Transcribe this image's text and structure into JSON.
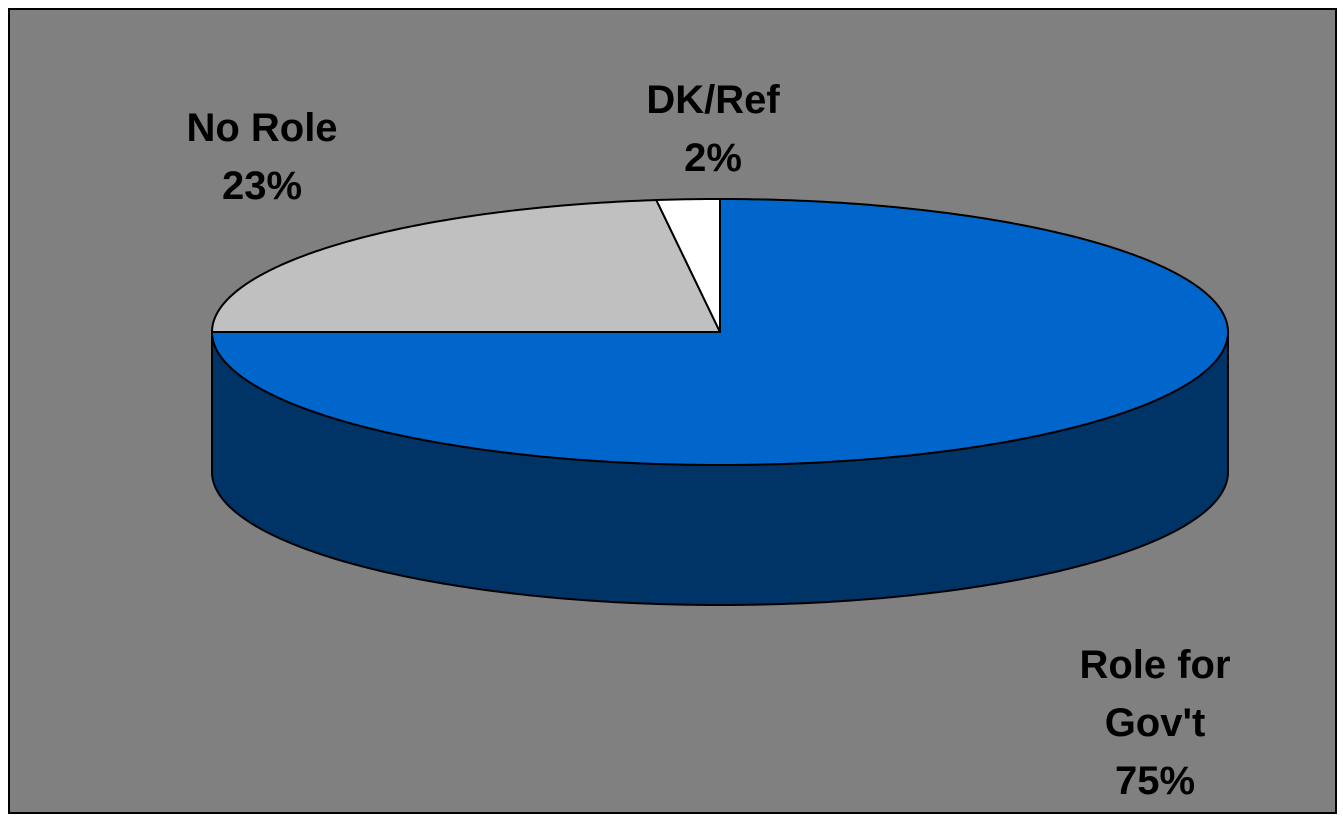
{
  "chart_data": {
    "type": "pie",
    "categories": [
      "Role for Gov't",
      "No Role",
      "DK/Ref"
    ],
    "values": [
      75,
      23,
      2
    ],
    "value_labels": [
      "75%",
      "23%",
      "2%"
    ],
    "colors": [
      "#0066cc",
      "#c0c0c0",
      "#ffffff"
    ],
    "side_colors": [
      "#003366",
      "#808080",
      "#c0c0c0"
    ]
  }
}
